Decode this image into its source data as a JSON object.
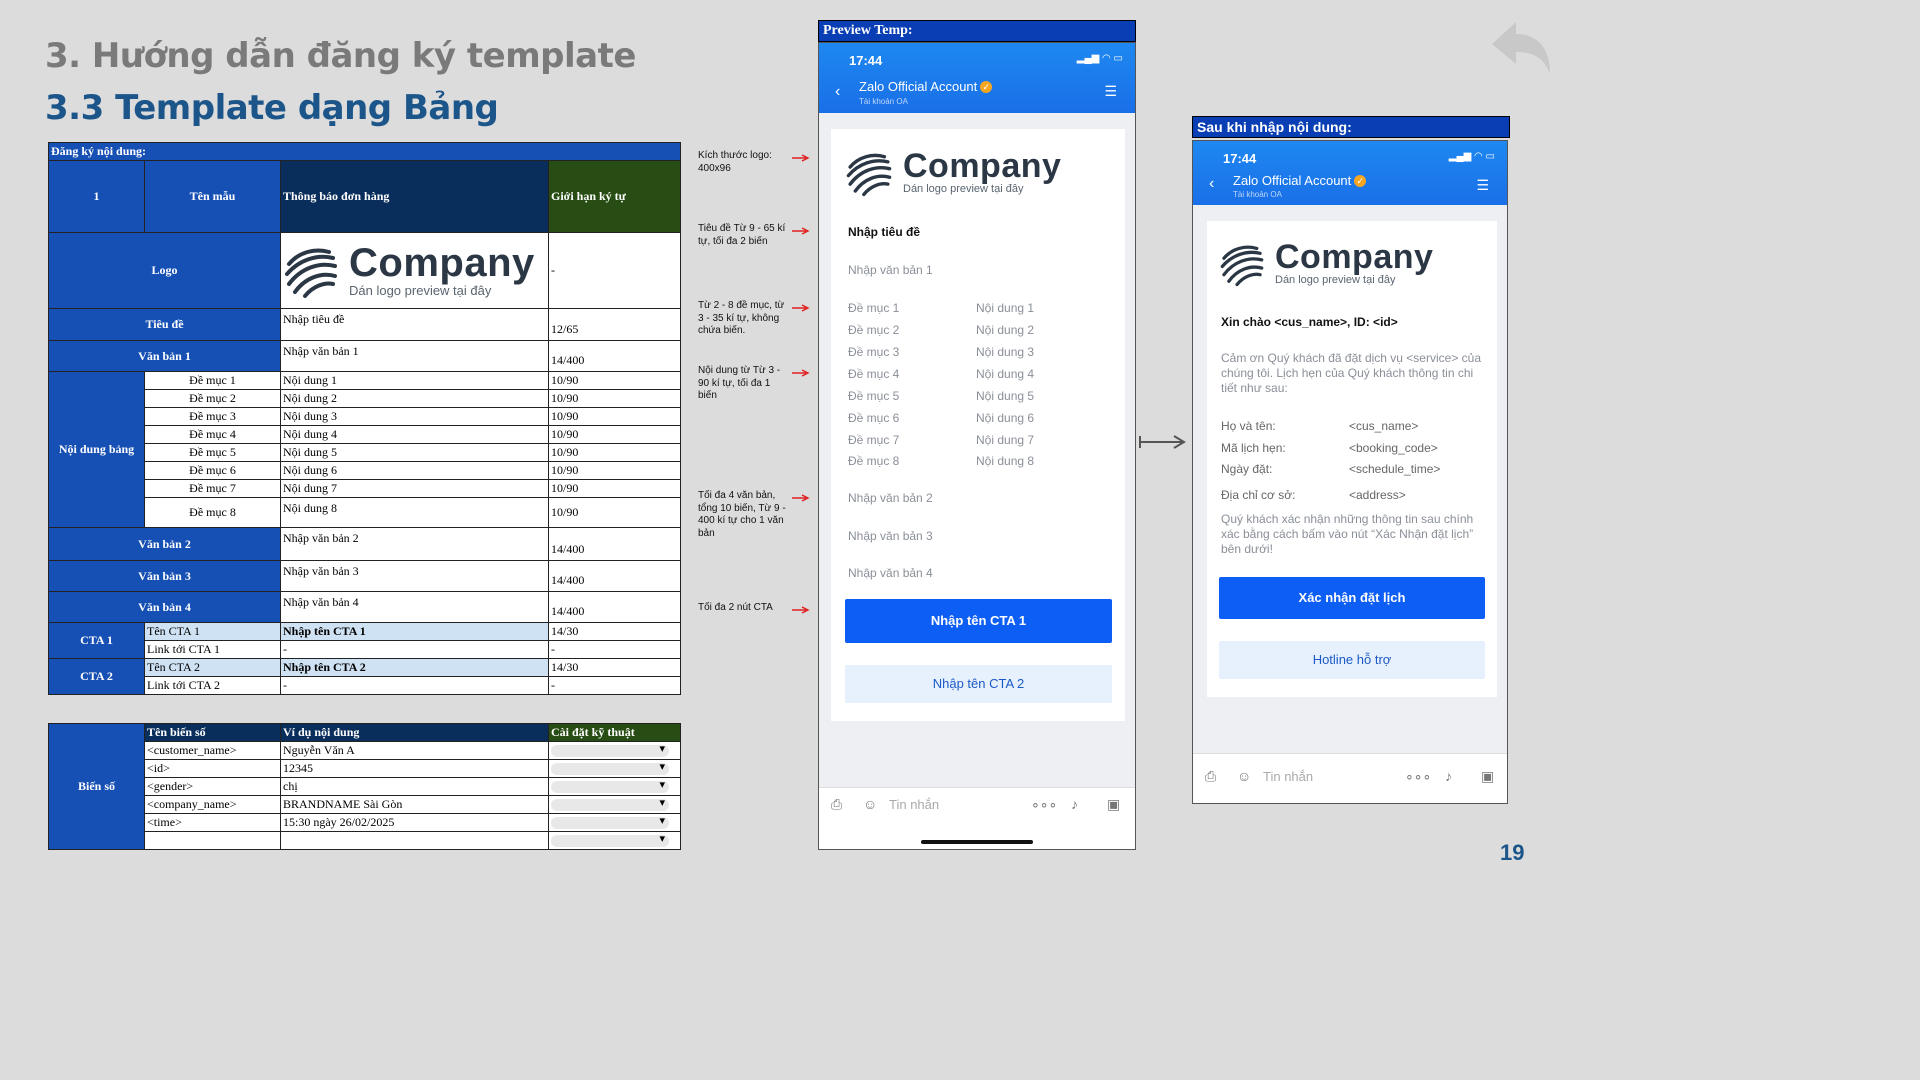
{
  "slide": {
    "title": "3. Hướng dẫn đăng ký template",
    "subtitle": "3.3 Template dạng Bảng",
    "page_number": "19"
  },
  "logo": {
    "company": "Company",
    "tagline": "Dán logo preview tại đây"
  },
  "table1": {
    "header": "Đăng ký nội dung:",
    "row_num": "1",
    "col_name": "Tên mẫu",
    "template_name": "Thông báo đơn hàng",
    "col_limit": "Giới hạn ký tự",
    "logo_label": "Logo",
    "logo_limit": "-",
    "title_label": "Tiêu đề",
    "title_value": "Nhập tiêu đề",
    "title_limit": "12/65",
    "text1_label": "Văn bản 1",
    "text1_value": "Nhập văn bản 1",
    "text1_limit": "14/400",
    "table_label": "Nội dung bảng",
    "rows": [
      {
        "k": "Đề mục 1",
        "v": "Nội dung 1",
        "lim": "10/90"
      },
      {
        "k": "Đề mục 2",
        "v": "Nội dung 2",
        "lim": "10/90"
      },
      {
        "k": "Đề mục 3",
        "v": "Nội dung 3",
        "lim": "10/90"
      },
      {
        "k": "Đề mục 4",
        "v": "Nội dung 4",
        "lim": "10/90"
      },
      {
        "k": "Đề mục 5",
        "v": "Nội dung 5",
        "lim": "10/90"
      },
      {
        "k": "Đề mục 6",
        "v": "Nội dung 6",
        "lim": "10/90"
      },
      {
        "k": "Đề mục 7",
        "v": "Nội dung 7",
        "lim": "10/90"
      },
      {
        "k": "Đề mục 8",
        "v": "Nội dung 8",
        "lim": "10/90"
      }
    ],
    "text2_label": "Văn bản 2",
    "text2_value": "Nhập văn bản 2",
    "text2_limit": "14/400",
    "text3_label": "Văn bản 3",
    "text3_value": "Nhập văn bản 3",
    "text3_limit": "14/400",
    "text4_label": "Văn bản 4",
    "text4_value": "Nhập văn bản 4",
    "text4_limit": "14/400",
    "cta1_label": "CTA 1",
    "cta1_name_key": "Tên CTA 1",
    "cta1_name_value": "Nhập tên CTA 1",
    "cta1_limit": "14/30",
    "cta1_link_key": "Link tới CTA 1",
    "cta1_link_value": "-",
    "cta1_link_limit": "-",
    "cta2_label": "CTA 2",
    "cta2_name_key": "Tên CTA 2",
    "cta2_name_value": "Nhập tên CTA 2",
    "cta2_limit": "14/30",
    "cta2_link_key": "Link tới CTA 2",
    "cta2_link_value": "-",
    "cta2_link_limit": "-"
  },
  "table2": {
    "label": "Biến số",
    "col_var": "Tên biến số",
    "col_example": "Ví dụ nội dung",
    "col_setting": "Cài đặt kỹ thuật",
    "rows": [
      {
        "var": "<customer_name>",
        "ex": "Nguyễn Văn A"
      },
      {
        "var": "<id>",
        "ex": "12345"
      },
      {
        "var": "<gender>",
        "ex": "chị"
      },
      {
        "var": "<company_name>",
        "ex": "BRANDNAME Sài Gòn"
      },
      {
        "var": "<time>",
        "ex": "15:30 ngày 26/02/2025"
      },
      {
        "var": "",
        "ex": ""
      }
    ]
  },
  "notes": [
    "Kích thước logo: 400x96",
    "Tiêu đề Từ 9 - 65 kí tự, tối đa 2 biến",
    "Từ 2 - 8 đề mục, từ 3 - 35 kí tự, không chứa biến.",
    "Nội dung từ Từ 3 - 90 kí tự, tối đa 1 biến",
    "Tối đa 4 văn bản, tổng 10 biến, Từ 9 - 400 kí tự cho 1 văn bản",
    "Tối đa 2 nút CTA"
  ],
  "phone_common": {
    "time": "17:44",
    "oa_name": "Zalo Official Account",
    "oa_sub": "Tài khoản OA",
    "input_placeholder": "Tin nhắn"
  },
  "preview": {
    "label": "Preview Temp:",
    "title": "Nhập tiêu đề",
    "text1": "Nhập văn bản 1",
    "rows": [
      {
        "k": "Đề mục 1",
        "v": "Nội dung 1"
      },
      {
        "k": "Đề mục 2",
        "v": "Nội dung 2"
      },
      {
        "k": "Đề mục 3",
        "v": "Nội dung 3"
      },
      {
        "k": "Đề mục 4",
        "v": "Nội dung 4"
      },
      {
        "k": "Đề mục 5",
        "v": "Nội dung 5"
      },
      {
        "k": "Đề mục 6",
        "v": "Nội dung 6"
      },
      {
        "k": "Đề mục 7",
        "v": "Nội dung 7"
      },
      {
        "k": "Đề mục 8",
        "v": "Nội dung 8"
      }
    ],
    "text2": "Nhập văn bản 2",
    "text3": "Nhập văn bản 3",
    "text4": "Nhập văn bản 4",
    "cta1": "Nhập tên CTA 1",
    "cta2": "Nhập tên CTA 2"
  },
  "filled": {
    "label": "Sau khi nhập nội dung:",
    "greeting": "Xin chào <cus_name>, ID: <id>",
    "body": "Cảm ơn Quý khách đã đặt dịch vụ <service> của chúng tôi. Lịch hẹn của Quý khách thông tin chi tiết như sau:",
    "rows": [
      {
        "k": "Họ và tên:",
        "v": "<cus_name>"
      },
      {
        "k": "Mã lịch hẹn:",
        "v": "<booking_code>"
      },
      {
        "k": "Ngày đặt:",
        "v": "<schedule_time>"
      },
      {
        "k": "Địa chỉ cơ sở:",
        "v": "<address>"
      }
    ],
    "footer_text": "Quý khách xác nhận những thông tin sau chính xác bằng cách bấm vào nút “Xác Nhận đặt lịch” bên dưới!",
    "cta1": "Xác nhận đặt lịch",
    "cta2": "Hotline hỗ trợ"
  },
  "colors": {
    "title_gray": "#7a7a7a",
    "title_blue": "#1b5589",
    "excel_blue": "#1750b4",
    "zalo_blue": "#0d5ef5",
    "arrow_red": "#e02020"
  }
}
